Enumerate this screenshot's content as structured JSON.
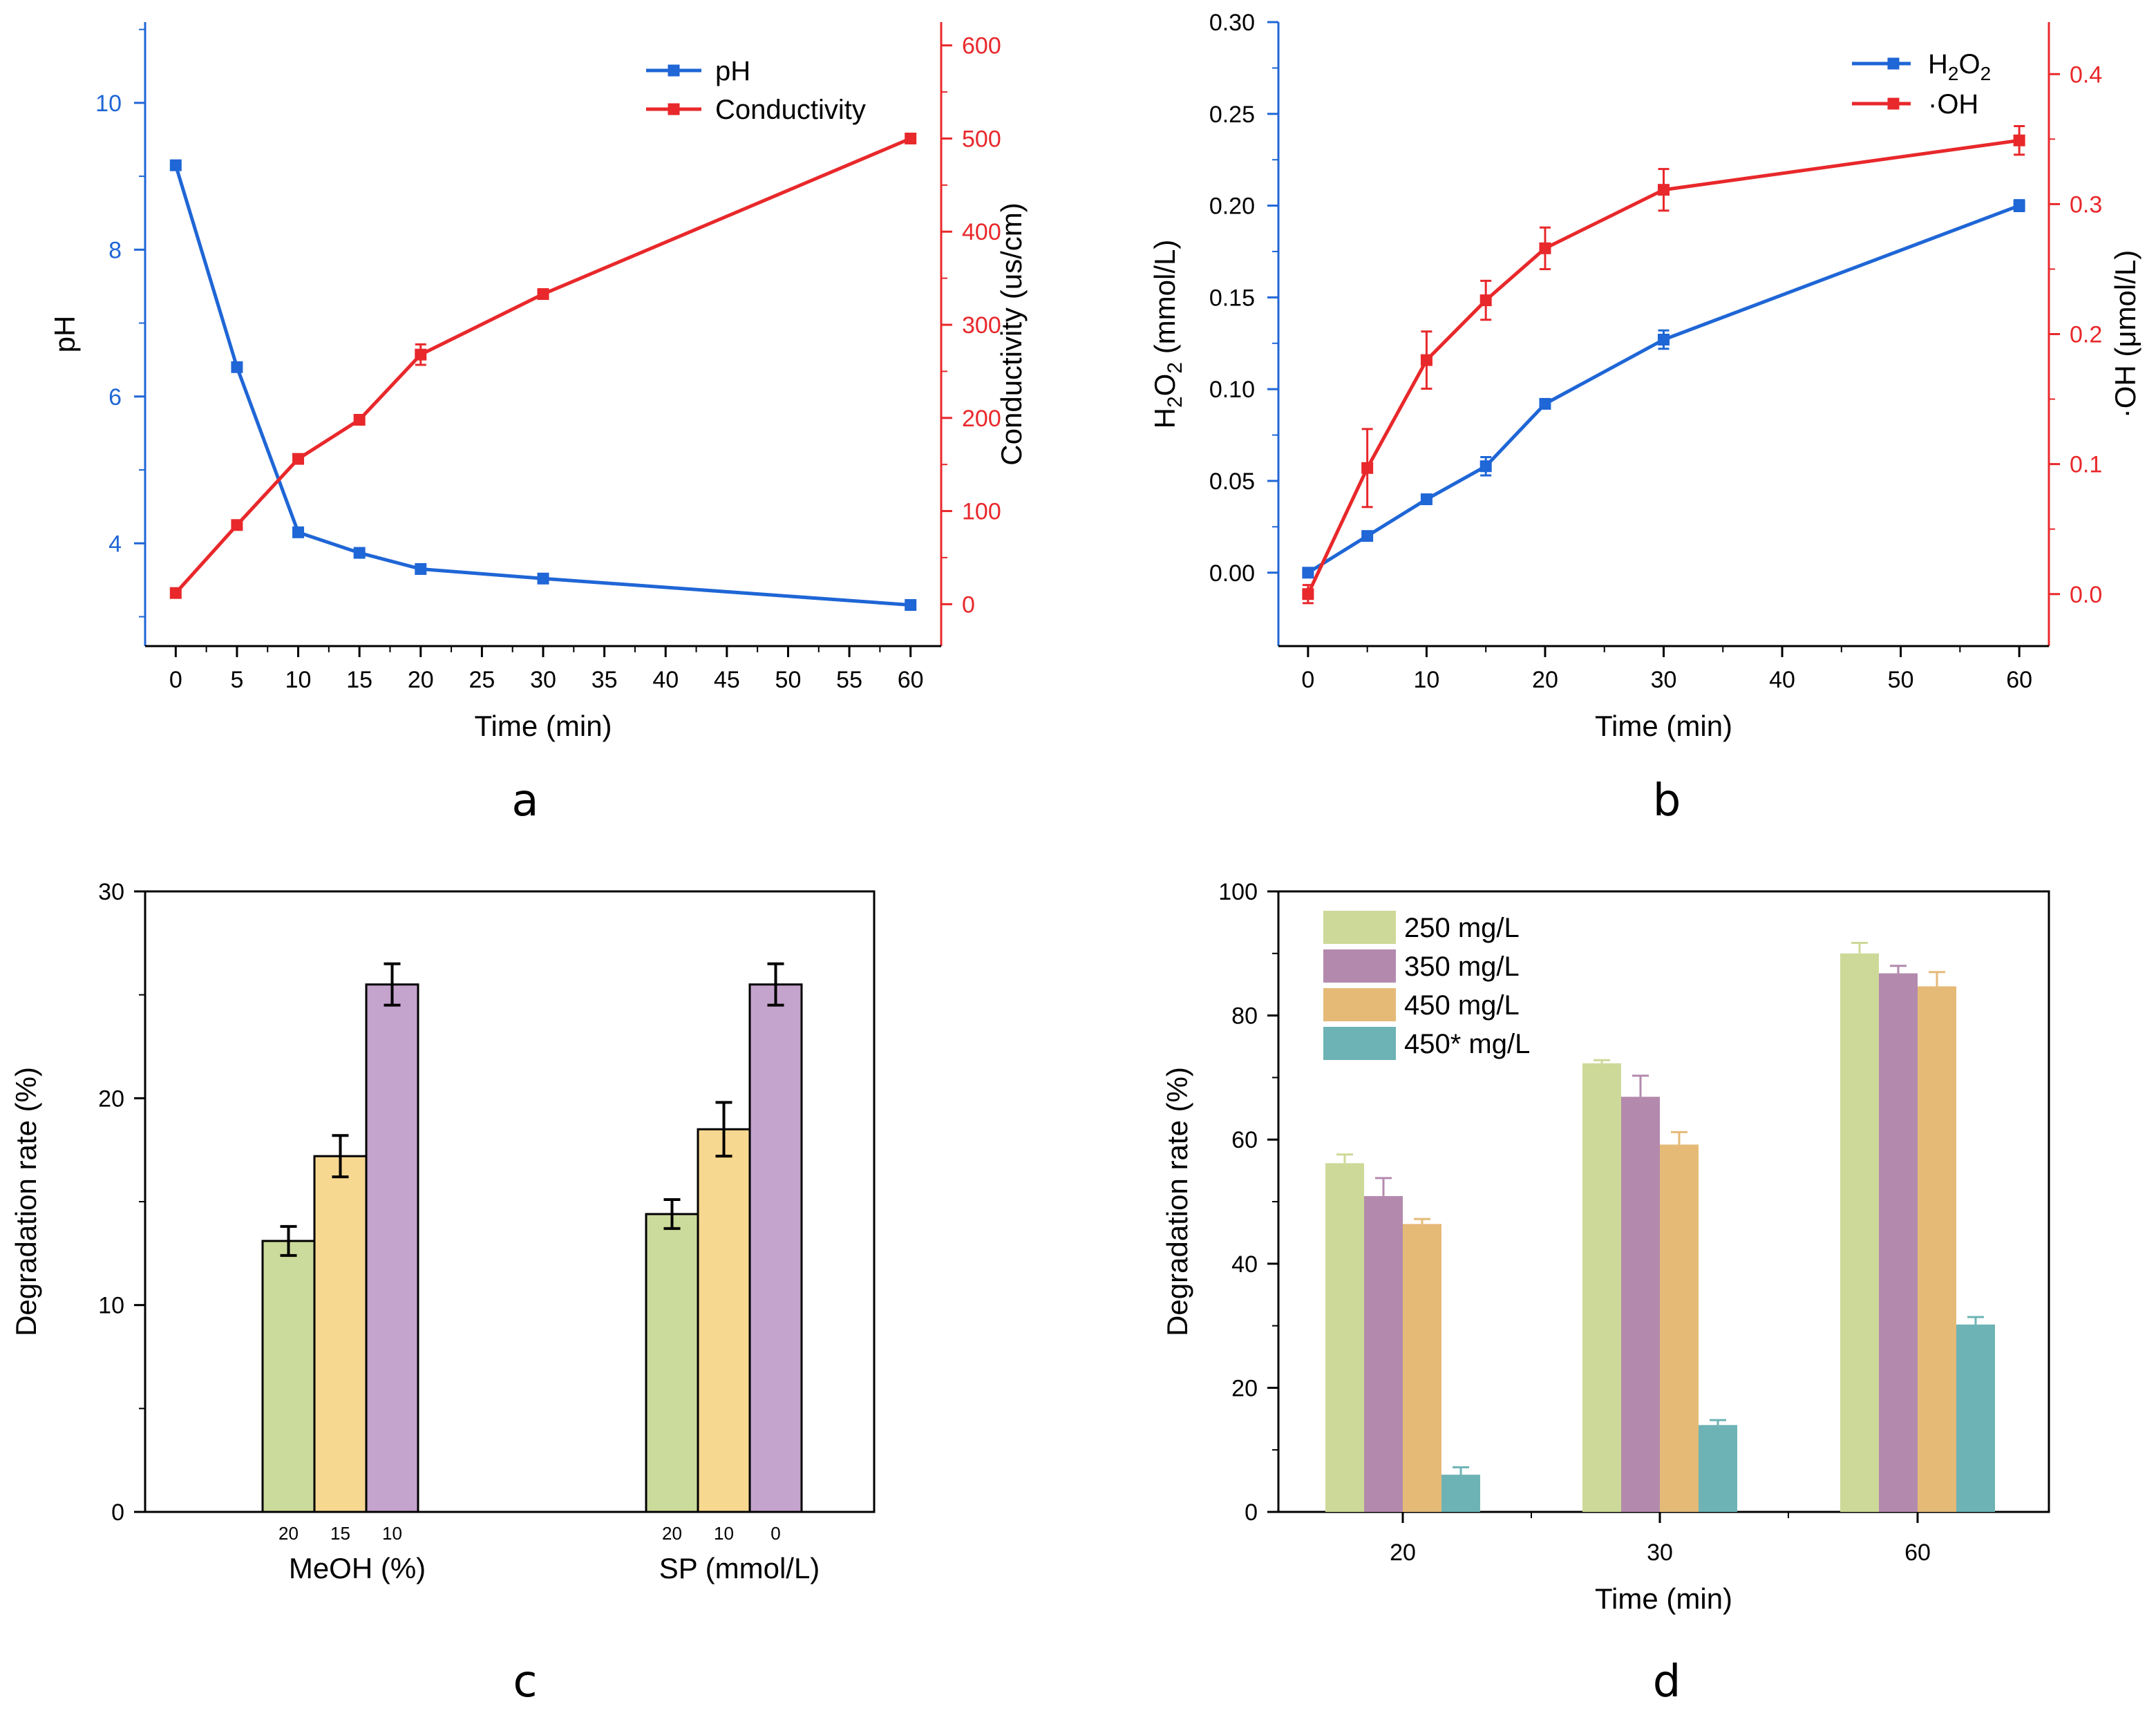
{
  "colors": {
    "blue": "#1f66d6",
    "red": "#e8282b",
    "green_bar": "#cbdb9b",
    "yellow_bar": "#f7d890",
    "purple_bar": "#c4a3cc",
    "d_green": "#cdd998",
    "d_purple": "#b38aad",
    "d_orange": "#e5ba77",
    "d_teal": "#6db3b5"
  },
  "chart_data": [
    {
      "panel": "a",
      "type": "line",
      "xlabel": "Time (min)",
      "x_ticks": [
        "0",
        "5",
        "10",
        "15",
        "20",
        "25",
        "30",
        "35",
        "40",
        "45",
        "50",
        "55",
        "60"
      ],
      "xlim": [
        -2.5,
        62.5
      ],
      "ylabel_left": "pH",
      "ylim_left": [
        2.6,
        11.1
      ],
      "yticks_left": [
        "4",
        "6",
        "8",
        "10"
      ],
      "ylabel_right": "Conductivity (us/cm)",
      "ylim_right": [
        -45,
        625
      ],
      "yticks_right": [
        "0",
        "100",
        "200",
        "300",
        "400",
        "500",
        "600"
      ],
      "legend": [
        "pH",
        "Conductivity"
      ],
      "series": [
        {
          "name": "pH",
          "axis": "left",
          "x": [
            0,
            5,
            10,
            15,
            20,
            30,
            60
          ],
          "values": [
            9.15,
            6.4,
            4.15,
            3.87,
            3.65,
            3.52,
            3.16
          ],
          "err": [
            0.05,
            0.03,
            0.03,
            0.03,
            0.03,
            0.03,
            0.03
          ]
        },
        {
          "name": "Conductivity",
          "axis": "right",
          "x": [
            0,
            5,
            10,
            15,
            20,
            30,
            60
          ],
          "values": [
            12,
            85,
            156,
            198,
            268,
            333,
            500
          ],
          "err": [
            4,
            4,
            4,
            4,
            11,
            4,
            4
          ]
        }
      ],
      "panel_label": "a"
    },
    {
      "panel": "b",
      "type": "line",
      "xlabel": "Time (min)",
      "x_ticks": [
        "0",
        "10",
        "20",
        "30",
        "40",
        "50",
        "60"
      ],
      "xlim": [
        -2.5,
        62.5
      ],
      "ylabel_left": "H2O2 (mmol/L)",
      "ylim_left": [
        -0.04,
        0.3
      ],
      "yticks_left": [
        "0.00",
        "0.05",
        "0.10",
        "0.15",
        "0.20",
        "0.25",
        "0.30"
      ],
      "ylabel_right": "·OH (μmol/L)",
      "ylim_right": [
        -0.04,
        0.44
      ],
      "yticks_right": [
        "0.0",
        "0.1",
        "0.2",
        "0.3",
        "0.4"
      ],
      "legend": [
        "H2O2",
        "·OH"
      ],
      "series": [
        {
          "name": "H2O2",
          "axis": "left",
          "x": [
            0,
            5,
            10,
            15,
            20,
            30,
            60
          ],
          "values": [
            0.0,
            0.02,
            0.04,
            0.058,
            0.092,
            0.127,
            0.2
          ],
          "err": [
            0.002,
            0.002,
            0.002,
            0.005,
            0.002,
            0.005,
            0.003
          ]
        },
        {
          "name": "·OH",
          "axis": "right",
          "x": [
            0,
            5,
            10,
            15,
            20,
            30,
            60
          ],
          "values": [
            0.0,
            0.097,
            0.18,
            0.226,
            0.266,
            0.311,
            0.349
          ],
          "err": [
            0.007,
            0.03,
            0.022,
            0.015,
            0.016,
            0.016,
            0.011
          ]
        }
      ],
      "panel_label": "b"
    },
    {
      "panel": "c",
      "type": "bar",
      "ylabel": "Degradation rate (%)",
      "ylim": [
        0,
        30
      ],
      "yticks": [
        "0",
        "10",
        "20",
        "30"
      ],
      "groups": [
        {
          "name": "MeOH (%)",
          "bar_labels": [
            "20",
            "15",
            "10"
          ],
          "values": [
            13.1,
            17.2,
            25.5
          ],
          "err": [
            0.7,
            1.0,
            1.0
          ]
        },
        {
          "name": "SP (mmol/L)",
          "bar_labels": [
            "20",
            "10",
            "0"
          ],
          "values": [
            14.4,
            18.5,
            25.5
          ],
          "err": [
            0.7,
            1.3,
            1.0
          ]
        }
      ],
      "panel_label": "c"
    },
    {
      "panel": "d",
      "type": "bar",
      "xlabel": "Time (min)",
      "ylabel": "Degradation rate (%)",
      "ylim": [
        0,
        100
      ],
      "yticks": [
        "0",
        "20",
        "40",
        "60",
        "80",
        "100"
      ],
      "categories": [
        "20",
        "30",
        "60"
      ],
      "series": [
        {
          "name": "250 mg/L",
          "values": [
            56.2,
            72.3,
            90.0
          ],
          "err": [
            1.4,
            0.5,
            1.7
          ]
        },
        {
          "name": "350 mg/L",
          "values": [
            50.9,
            66.9,
            86.8
          ],
          "err": [
            2.9,
            3.4,
            1.2
          ]
        },
        {
          "name": "450 mg/L",
          "values": [
            46.4,
            59.2,
            84.7
          ],
          "err": [
            0.8,
            2.0,
            2.3
          ]
        },
        {
          "name": "450* mg/L",
          "values": [
            6.0,
            14.0,
            30.2
          ],
          "err": [
            1.2,
            0.8,
            1.2
          ]
        }
      ],
      "panel_label": "d"
    }
  ]
}
